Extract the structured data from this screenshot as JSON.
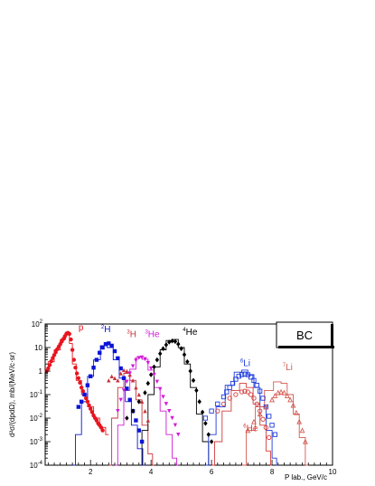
{
  "chart_data": {
    "type": "scatter",
    "panel_label": "BC",
    "xlabel": "P lab., GeV/c",
    "ylabel": "d²σ/(dpdΩ), mb/(MeV/c·sr)",
    "xlim": [
      0.5,
      10
    ],
    "ylim": [
      0.0001,
      100
    ],
    "yscale": "log",
    "x_ticks": [
      2,
      4,
      6,
      8,
      10
    ],
    "y_ticks": [
      {
        "value": 0.0001,
        "base": "10",
        "exp": "-4"
      },
      {
        "value": 0.001,
        "base": "10",
        "exp": "-3"
      },
      {
        "value": 0.01,
        "base": "10",
        "exp": "-2"
      },
      {
        "value": 0.1,
        "base": "10",
        "exp": "-1"
      },
      {
        "value": 1,
        "text": "1"
      },
      {
        "value": 10,
        "text": "10"
      },
      {
        "value": 100,
        "base": "10",
        "exp": "2"
      }
    ],
    "series": [
      {
        "name": "p",
        "sup": "",
        "color": "#e8141e",
        "marker": "circle-filled",
        "label_pos": [
          1.6,
          55
        ],
        "points": [
          [
            0.55,
            1.0
          ],
          [
            0.6,
            1.3
          ],
          [
            0.65,
            1.8
          ],
          [
            0.7,
            2.6
          ],
          [
            0.75,
            3.6
          ],
          [
            0.8,
            4.8
          ],
          [
            0.85,
            6.4
          ],
          [
            0.9,
            8.5
          ],
          [
            0.95,
            11
          ],
          [
            1.0,
            14
          ],
          [
            1.05,
            18
          ],
          [
            1.1,
            23
          ],
          [
            1.15,
            30
          ],
          [
            1.2,
            38
          ],
          [
            1.25,
            42
          ],
          [
            1.3,
            38
          ],
          [
            1.35,
            22
          ],
          [
            1.4,
            8
          ],
          [
            1.45,
            3
          ],
          [
            1.5,
            1.4
          ],
          [
            1.55,
            0.8
          ],
          [
            1.6,
            0.5
          ],
          [
            1.65,
            0.32
          ],
          [
            1.7,
            0.2
          ],
          [
            1.75,
            0.14
          ],
          [
            1.8,
            0.1
          ],
          [
            1.85,
            0.07
          ],
          [
            1.9,
            0.05
          ],
          [
            1.95,
            0.035
          ],
          [
            2.0,
            0.025
          ],
          [
            2.05,
            0.018
          ],
          [
            2.1,
            0.013
          ],
          [
            2.15,
            0.01
          ],
          [
            2.2,
            0.008
          ],
          [
            2.25,
            0.006
          ],
          [
            2.3,
            0.005
          ],
          [
            2.35,
            0.004
          ],
          [
            2.4,
            0.003
          ]
        ],
        "curve": [
          [
            0.5,
            1.0
          ],
          [
            0.7,
            2.5
          ],
          [
            0.9,
            8
          ],
          [
            1.1,
            22
          ],
          [
            1.25,
            45
          ],
          [
            1.35,
            15
          ],
          [
            1.45,
            2
          ],
          [
            1.6,
            0.4
          ],
          [
            1.8,
            0.1
          ],
          [
            2.0,
            0.03
          ],
          [
            2.2,
            0.01
          ],
          [
            2.4,
            0.004
          ],
          [
            2.6,
            0.002
          ]
        ]
      },
      {
        "name": "H",
        "sup": "2",
        "color": "#0a14d6",
        "marker": "square-filled",
        "label_pos": [
          2.35,
          45
        ],
        "points": [
          [
            1.6,
            0.03
          ],
          [
            1.7,
            0.05
          ],
          [
            1.8,
            0.1
          ],
          [
            1.9,
            0.25
          ],
          [
            2.0,
            0.6
          ],
          [
            2.1,
            1.4
          ],
          [
            2.2,
            3
          ],
          [
            2.3,
            6
          ],
          [
            2.4,
            10
          ],
          [
            2.5,
            14
          ],
          [
            2.6,
            15
          ],
          [
            2.7,
            12
          ],
          [
            2.8,
            7
          ],
          [
            2.9,
            3.5
          ],
          [
            3.0,
            1.3
          ],
          [
            3.1,
            0.5
          ],
          [
            3.2,
            0.18
          ],
          [
            3.3,
            0.06
          ],
          [
            3.4,
            0.02
          ],
          [
            3.5,
            0.008
          ],
          [
            3.6,
            0.003
          ],
          [
            3.7,
            0.001
          ]
        ],
        "curve": [
          [
            1.4,
            0.0001
          ],
          [
            1.6,
            0.002
          ],
          [
            1.8,
            0.05
          ],
          [
            2.0,
            0.6
          ],
          [
            2.2,
            3
          ],
          [
            2.45,
            12
          ],
          [
            2.65,
            10
          ],
          [
            2.85,
            3
          ],
          [
            3.05,
            0.5
          ],
          [
            3.25,
            0.05
          ],
          [
            3.45,
            0.005
          ],
          [
            3.65,
            0.0005
          ],
          [
            3.8,
            0.0001
          ]
        ]
      },
      {
        "name": "H",
        "sup": "3",
        "color": "#c8323c",
        "marker": "triangle-filled",
        "label_pos": [
          3.2,
          28
        ],
        "points": [
          [
            2.6,
            0.4
          ],
          [
            2.7,
            0.6
          ],
          [
            2.8,
            0.5
          ],
          [
            2.9,
            0.4
          ],
          [
            3.0,
            0.8
          ],
          [
            3.1,
            1.1
          ],
          [
            3.2,
            1.0
          ],
          [
            3.3,
            0.7
          ],
          [
            3.4,
            0.4
          ],
          [
            3.5,
            0.2
          ],
          [
            3.6,
            0.1
          ],
          [
            3.7,
            0.05
          ],
          [
            3.8,
            0.02
          ],
          [
            3.9,
            0.008
          ]
        ],
        "curve": [
          [
            2.6,
            0.0001
          ],
          [
            2.8,
            0.01
          ],
          [
            3.0,
            0.2
          ],
          [
            3.2,
            0.8
          ],
          [
            3.4,
            0.4
          ],
          [
            3.6,
            0.06
          ],
          [
            3.8,
            0.005
          ],
          [
            4.0,
            0.0003
          ],
          [
            4.1,
            0.0001
          ]
        ]
      },
      {
        "name": "He",
        "sup": "3",
        "color": "#d21ad7",
        "marker": "triangle-down-filled",
        "label_pos": [
          3.8,
          28
        ],
        "points": [
          [
            2.9,
            0.02
          ],
          [
            3.0,
            0.06
          ],
          [
            3.1,
            0.15
          ],
          [
            3.2,
            0.35
          ],
          [
            3.3,
            0.8
          ],
          [
            3.4,
            1.6
          ],
          [
            3.5,
            2.8
          ],
          [
            3.6,
            3.6
          ],
          [
            3.7,
            3.8
          ],
          [
            3.8,
            3.2
          ],
          [
            3.9,
            2.2
          ],
          [
            4.0,
            1.3
          ],
          [
            4.1,
            0.7
          ],
          [
            4.2,
            0.35
          ],
          [
            4.3,
            0.17
          ],
          [
            4.4,
            0.08
          ],
          [
            4.5,
            0.04
          ],
          [
            4.6,
            0.02
          ],
          [
            4.7,
            0.01
          ],
          [
            4.8,
            0.005
          ],
          [
            4.9,
            0.002
          ]
        ],
        "curve": [
          [
            2.8,
            0.0001
          ],
          [
            3.0,
            0.005
          ],
          [
            3.2,
            0.15
          ],
          [
            3.4,
            1.2
          ],
          [
            3.6,
            3.8
          ],
          [
            3.8,
            3.2
          ],
          [
            4.0,
            1.1
          ],
          [
            4.2,
            0.2
          ],
          [
            4.4,
            0.02
          ],
          [
            4.6,
            0.002
          ],
          [
            4.8,
            0.0002
          ],
          [
            4.9,
            0.0001
          ]
        ]
      },
      {
        "name": "He",
        "sup": "4",
        "color": "#000000",
        "marker": "diamond-filled",
        "label_pos": [
          5.05,
          35
        ],
        "points": [
          [
            3.2,
            0.01
          ],
          [
            3.4,
            0.02
          ],
          [
            3.6,
            0.05
          ],
          [
            3.8,
            0.12
          ],
          [
            3.9,
            0.3
          ],
          [
            4.0,
            0.7
          ],
          [
            4.1,
            1.5
          ],
          [
            4.2,
            3
          ],
          [
            4.3,
            5.5
          ],
          [
            4.4,
            9
          ],
          [
            4.5,
            13
          ],
          [
            4.6,
            17
          ],
          [
            4.7,
            19
          ],
          [
            4.8,
            18
          ],
          [
            4.9,
            14
          ],
          [
            5.0,
            9
          ],
          [
            5.1,
            5
          ],
          [
            5.2,
            2.5
          ],
          [
            5.3,
            1.0
          ],
          [
            5.4,
            0.4
          ],
          [
            5.5,
            0.15
          ],
          [
            5.6,
            0.05
          ],
          [
            5.7,
            0.018
          ],
          [
            5.8,
            0.006
          ],
          [
            5.9,
            0.002
          ],
          [
            6.0,
            0.001
          ]
        ],
        "curve": [
          [
            3.6,
            0.0001
          ],
          [
            3.8,
            0.003
          ],
          [
            4.0,
            0.1
          ],
          [
            4.2,
            1.5
          ],
          [
            4.4,
            8
          ],
          [
            4.6,
            20
          ],
          [
            4.8,
            22
          ],
          [
            5.0,
            10
          ],
          [
            5.2,
            2
          ],
          [
            5.4,
            0.2
          ],
          [
            5.6,
            0.015
          ],
          [
            5.8,
            0.001
          ],
          [
            6.0,
            0.0001
          ]
        ]
      },
      {
        "name": "Li",
        "sup": "6",
        "color": "#1e3cdc",
        "marker": "square-open",
        "label_pos": [
          6.95,
          1.6
        ],
        "points": [
          [
            5.8,
            0.01
          ],
          [
            6.0,
            0.02
          ],
          [
            6.2,
            0.04
          ],
          [
            6.4,
            0.08
          ],
          [
            6.5,
            0.13
          ],
          [
            6.6,
            0.2
          ],
          [
            6.7,
            0.3
          ],
          [
            6.8,
            0.45
          ],
          [
            6.9,
            0.6
          ],
          [
            7.0,
            0.7
          ],
          [
            7.1,
            0.75
          ],
          [
            7.2,
            0.7
          ],
          [
            7.3,
            0.55
          ],
          [
            7.4,
            0.4
          ],
          [
            7.5,
            0.25
          ],
          [
            7.6,
            0.14
          ],
          [
            7.7,
            0.07
          ],
          [
            7.8,
            0.03
          ],
          [
            7.9,
            0.012
          ],
          [
            8.0,
            0.005
          ],
          [
            8.1,
            0.002
          ]
        ],
        "curve": [
          [
            5.8,
            0.0001
          ],
          [
            6.0,
            0.002
          ],
          [
            6.3,
            0.03
          ],
          [
            6.6,
            0.25
          ],
          [
            6.9,
            0.9
          ],
          [
            7.1,
            1.1
          ],
          [
            7.3,
            0.7
          ],
          [
            7.5,
            0.2
          ],
          [
            7.7,
            0.03
          ],
          [
            7.9,
            0.003
          ],
          [
            8.1,
            0.0002
          ],
          [
            8.2,
            0.0001
          ]
        ]
      },
      {
        "name": "He",
        "sup": "6",
        "color": "#d23c3c",
        "marker": "circle-open",
        "label_pos": [
          7.05,
          0.0028
        ],
        "points": [
          [
            6.2,
            0.02
          ],
          [
            6.4,
            0.04
          ],
          [
            6.6,
            0.07
          ],
          [
            6.8,
            0.1
          ],
          [
            7.0,
            0.13
          ],
          [
            7.1,
            0.14
          ],
          [
            7.2,
            0.13
          ],
          [
            7.3,
            0.1
          ],
          [
            7.4,
            0.07
          ],
          [
            7.5,
            0.04
          ],
          [
            7.6,
            0.02
          ],
          [
            7.7,
            0.009
          ],
          [
            7.8,
            0.004
          ],
          [
            7.9,
            0.0015
          ]
        ],
        "curve": [
          [
            6.0,
            0.0001
          ],
          [
            6.2,
            0.001
          ],
          [
            6.5,
            0.02
          ],
          [
            6.8,
            0.15
          ],
          [
            7.05,
            0.3
          ],
          [
            7.25,
            0.2
          ],
          [
            7.5,
            0.04
          ],
          [
            7.7,
            0.005
          ],
          [
            7.9,
            0.0004
          ],
          [
            8.0,
            0.0001
          ]
        ]
      },
      {
        "name": "Li",
        "sup": "7",
        "color": "#d25a50",
        "marker": "triangle-open",
        "label_pos": [
          8.35,
          1.1
        ],
        "points": [
          [
            7.2,
            0.003
          ],
          [
            7.4,
            0.007
          ],
          [
            7.6,
            0.015
          ],
          [
            7.8,
            0.03
          ],
          [
            8.0,
            0.06
          ],
          [
            8.1,
            0.09
          ],
          [
            8.2,
            0.12
          ],
          [
            8.3,
            0.13
          ],
          [
            8.4,
            0.12
          ],
          [
            8.5,
            0.09
          ],
          [
            8.6,
            0.06
          ],
          [
            8.7,
            0.035
          ],
          [
            8.8,
            0.017
          ],
          [
            8.9,
            0.007
          ],
          [
            9.0,
            0.003
          ],
          [
            9.1,
            0.001
          ]
        ],
        "curve": [
          [
            7.0,
            0.0001
          ],
          [
            7.3,
            0.003
          ],
          [
            7.6,
            0.03
          ],
          [
            7.9,
            0.15
          ],
          [
            8.2,
            0.35
          ],
          [
            8.4,
            0.3
          ],
          [
            8.6,
            0.1
          ],
          [
            8.8,
            0.015
          ],
          [
            9.0,
            0.0015
          ],
          [
            9.2,
            0.0001
          ]
        ]
      }
    ]
  }
}
